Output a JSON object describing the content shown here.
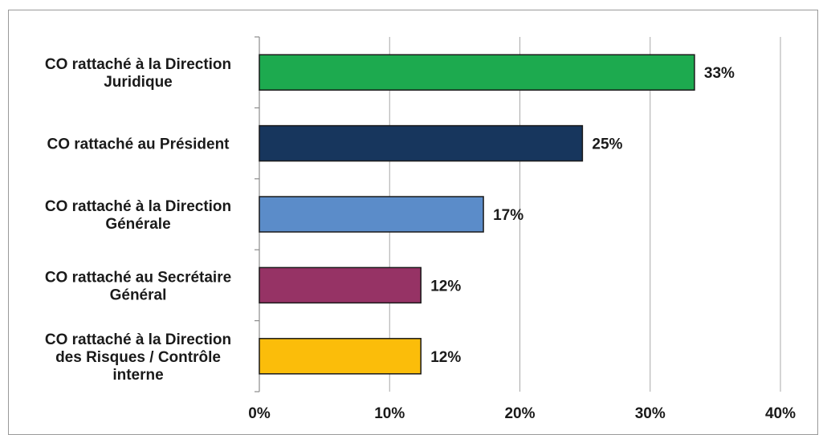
{
  "chart_data": {
    "type": "bar",
    "orientation": "horizontal",
    "categories": [
      [
        "CO  rattaché à la Direction",
        "Juridique"
      ],
      [
        "CO rattaché au Président"
      ],
      [
        "CO rattaché à la Direction",
        "Générale"
      ],
      [
        "CO rattaché au Secrétaire",
        "Général"
      ],
      [
        "CO rattaché à la Direction",
        "des Risques / Contrôle",
        "interne"
      ]
    ],
    "values": [
      33.4,
      24.8,
      17.2,
      12.4,
      12.4
    ],
    "data_labels": [
      "33%",
      "25%",
      "17%",
      "12%",
      "12%"
    ],
    "colors": [
      "#1daa4f",
      "#17365d",
      "#5b8cc9",
      "#963365",
      "#fbbd0a"
    ],
    "xlim": [
      0,
      40
    ],
    "x_ticks": [
      0,
      10,
      20,
      30,
      40
    ],
    "x_tick_labels": [
      "0%",
      "10%",
      "20%",
      "30%",
      "40%"
    ],
    "grid": "vertical",
    "legend": "none"
  }
}
